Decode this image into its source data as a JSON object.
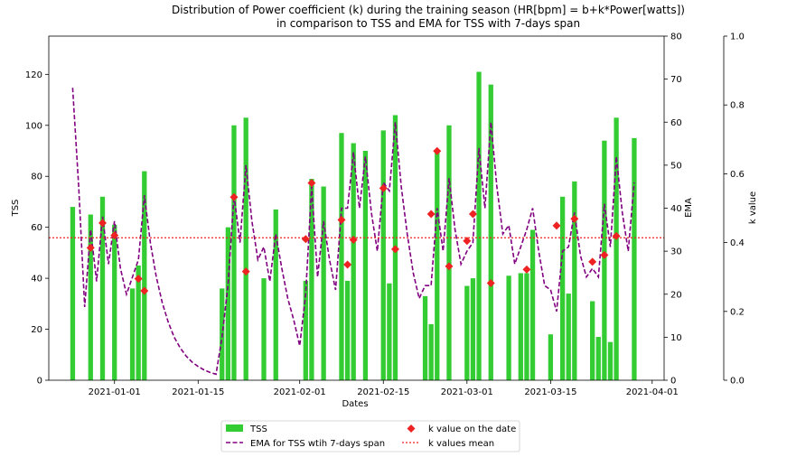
{
  "chart_data": {
    "type": "bar",
    "title": "Distribution of Power coefficient (k) during the training season (HR[bpm] = b+k*Power[watts])",
    "subtitle": "in comparison to TSS and EMA for TSS with 7-days span",
    "xlabel": "Dates",
    "ylabel_left": "TSS",
    "ylabel_ema": "EMA",
    "ylabel_k": "k value",
    "xlim": [
      "2020-12-21",
      "2021-04-03"
    ],
    "ylim_tss": [
      0,
      135
    ],
    "ylim_ema": [
      0,
      80
    ],
    "ylim_k": [
      0,
      1
    ],
    "x_ticks": [
      "2021-01-01",
      "2021-01-15",
      "2021-02-01",
      "2021-02-15",
      "2021-03-01",
      "2021-03-15",
      "2021-04-01"
    ],
    "tss_ticks": [
      0,
      20,
      40,
      60,
      80,
      100,
      120
    ],
    "ema_ticks": [
      0,
      10,
      20,
      30,
      40,
      50,
      60,
      70,
      80
    ],
    "k_ticks": [
      "0.0",
      "0.2",
      "0.4",
      "0.6",
      "0.8",
      "1.0"
    ],
    "grid": false,
    "legend_position": "bottom-center",
    "colors": {
      "tss": "#33cc33",
      "ema": "#800080",
      "k_points": "#ee2222",
      "k_mean": "#ee2222"
    },
    "series": [
      {
        "name": "TSS",
        "kind": "bar",
        "axis": "tss",
        "points": [
          [
            "2020-12-25",
            68
          ],
          [
            "2020-12-28",
            65
          ],
          [
            "2020-12-30",
            72
          ],
          [
            "2021-01-01",
            61
          ],
          [
            "2021-01-04",
            36
          ],
          [
            "2021-01-05",
            45
          ],
          [
            "2021-01-06",
            82
          ],
          [
            "2021-01-19",
            36
          ],
          [
            "2021-01-20",
            60
          ],
          [
            "2021-01-21",
            100
          ],
          [
            "2021-01-23",
            103
          ],
          [
            "2021-01-26",
            40
          ],
          [
            "2021-01-28",
            67
          ],
          [
            "2021-02-02",
            39
          ],
          [
            "2021-02-03",
            79
          ],
          [
            "2021-02-05",
            76
          ],
          [
            "2021-02-08",
            97
          ],
          [
            "2021-02-09",
            39
          ],
          [
            "2021-02-10",
            93
          ],
          [
            "2021-02-12",
            90
          ],
          [
            "2021-02-15",
            98
          ],
          [
            "2021-02-16",
            38
          ],
          [
            "2021-02-17",
            104
          ],
          [
            "2021-02-22",
            33
          ],
          [
            "2021-02-23",
            22
          ],
          [
            "2021-02-24",
            90
          ],
          [
            "2021-02-26",
            100
          ],
          [
            "2021-03-01",
            37
          ],
          [
            "2021-03-02",
            40
          ],
          [
            "2021-03-03",
            121
          ],
          [
            "2021-03-05",
            116
          ],
          [
            "2021-03-08",
            41
          ],
          [
            "2021-03-10",
            42
          ],
          [
            "2021-03-11",
            42
          ],
          [
            "2021-03-12",
            59
          ],
          [
            "2021-03-15",
            18
          ],
          [
            "2021-03-17",
            72
          ],
          [
            "2021-03-18",
            34
          ],
          [
            "2021-03-19",
            78
          ],
          [
            "2021-03-22",
            31
          ],
          [
            "2021-03-23",
            17
          ],
          [
            "2021-03-24",
            94
          ],
          [
            "2021-03-25",
            15
          ],
          [
            "2021-03-26",
            103
          ],
          [
            "2021-03-29",
            95
          ]
        ]
      },
      {
        "name": "EMA for TSS wtih 7-days span",
        "kind": "line",
        "axis": "ema",
        "points": [
          [
            "2020-12-25",
            68
          ],
          [
            "2020-12-26",
            45
          ],
          [
            "2020-12-27",
            17
          ],
          [
            "2020-12-28",
            35
          ],
          [
            "2020-12-29",
            23
          ],
          [
            "2020-12-30",
            38
          ],
          [
            "2020-12-31",
            27
          ],
          [
            "2021-01-01",
            37
          ],
          [
            "2021-01-02",
            26
          ],
          [
            "2021-01-03",
            20
          ],
          [
            "2021-01-04",
            24
          ],
          [
            "2021-01-05",
            28
          ],
          [
            "2021-01-06",
            43
          ],
          [
            "2021-01-07",
            32
          ],
          [
            "2021-01-08",
            24
          ],
          [
            "2021-01-09",
            18
          ],
          [
            "2021-01-10",
            13.5
          ],
          [
            "2021-01-11",
            10
          ],
          [
            "2021-01-12",
            7.5
          ],
          [
            "2021-01-13",
            5.6
          ],
          [
            "2021-01-14",
            4.2
          ],
          [
            "2021-01-15",
            3.2
          ],
          [
            "2021-01-16",
            2.4
          ],
          [
            "2021-01-17",
            1.8
          ],
          [
            "2021-01-18",
            1.4
          ],
          [
            "2021-01-19",
            10
          ],
          [
            "2021-01-20",
            22
          ],
          [
            "2021-01-21",
            43
          ],
          [
            "2021-01-22",
            32
          ],
          [
            "2021-01-23",
            50
          ],
          [
            "2021-01-24",
            37
          ],
          [
            "2021-01-25",
            28
          ],
          [
            "2021-01-26",
            31
          ],
          [
            "2021-01-27",
            23
          ],
          [
            "2021-01-28",
            34
          ],
          [
            "2021-01-29",
            26
          ],
          [
            "2021-01-30",
            19
          ],
          [
            "2021-01-31",
            14
          ],
          [
            "2021-02-01",
            8
          ],
          [
            "2021-02-02",
            20
          ],
          [
            "2021-02-03",
            45
          ],
          [
            "2021-02-04",
            24
          ],
          [
            "2021-02-05",
            37
          ],
          [
            "2021-02-06",
            28
          ],
          [
            "2021-02-07",
            21
          ],
          [
            "2021-02-08",
            40
          ],
          [
            "2021-02-09",
            40
          ],
          [
            "2021-02-10",
            53
          ],
          [
            "2021-02-11",
            40
          ],
          [
            "2021-02-12",
            52
          ],
          [
            "2021-02-13",
            39
          ],
          [
            "2021-02-14",
            30
          ],
          [
            "2021-02-15",
            46
          ],
          [
            "2021-02-16",
            44
          ],
          [
            "2021-02-17",
            60
          ],
          [
            "2021-02-18",
            45
          ],
          [
            "2021-02-19",
            34
          ],
          [
            "2021-02-20",
            25
          ],
          [
            "2021-02-21",
            19
          ],
          [
            "2021-02-22",
            22
          ],
          [
            "2021-02-23",
            22
          ],
          [
            "2021-02-24",
            40
          ],
          [
            "2021-02-25",
            30
          ],
          [
            "2021-02-26",
            47
          ],
          [
            "2021-02-27",
            35
          ],
          [
            "2021-02-28",
            27
          ],
          [
            "2021-03-01",
            30
          ],
          [
            "2021-03-02",
            32
          ],
          [
            "2021-03-03",
            54
          ],
          [
            "2021-03-04",
            40
          ],
          [
            "2021-03-05",
            60
          ],
          [
            "2021-03-06",
            45
          ],
          [
            "2021-03-07",
            34
          ],
          [
            "2021-03-08",
            36
          ],
          [
            "2021-03-09",
            27
          ],
          [
            "2021-03-10",
            31
          ],
          [
            "2021-03-11",
            35
          ],
          [
            "2021-03-12",
            40
          ],
          [
            "2021-03-13",
            30
          ],
          [
            "2021-03-14",
            22
          ],
          [
            "2021-03-15",
            21
          ],
          [
            "2021-03-16",
            16
          ],
          [
            "2021-03-17",
            30
          ],
          [
            "2021-03-18",
            31
          ],
          [
            "2021-03-19",
            39
          ],
          [
            "2021-03-20",
            29
          ],
          [
            "2021-03-21",
            24
          ],
          [
            "2021-03-22",
            26
          ],
          [
            "2021-03-23",
            24
          ],
          [
            "2021-03-24",
            41
          ],
          [
            "2021-03-25",
            31
          ],
          [
            "2021-03-26",
            52
          ],
          [
            "2021-03-27",
            39
          ],
          [
            "2021-03-28",
            30
          ],
          [
            "2021-03-29",
            46
          ]
        ]
      },
      {
        "name": "k value on the date",
        "kind": "scatter",
        "axis": "k",
        "points": [
          [
            "2020-12-28",
            0.385
          ],
          [
            "2020-12-30",
            0.457
          ],
          [
            "2021-01-01",
            0.421
          ],
          [
            "2021-01-05",
            0.295
          ],
          [
            "2021-01-06",
            0.26
          ],
          [
            "2021-01-21",
            0.532
          ],
          [
            "2021-01-23",
            0.316
          ],
          [
            "2021-02-02",
            0.41
          ],
          [
            "2021-02-03",
            0.573
          ],
          [
            "2021-02-08",
            0.466
          ],
          [
            "2021-02-09",
            0.336
          ],
          [
            "2021-02-10",
            0.408
          ],
          [
            "2021-02-15",
            0.558
          ],
          [
            "2021-02-17",
            0.381
          ],
          [
            "2021-02-23",
            0.483
          ],
          [
            "2021-02-24",
            0.666
          ],
          [
            "2021-02-26",
            0.331
          ],
          [
            "2021-03-01",
            0.405
          ],
          [
            "2021-03-02",
            0.483
          ],
          [
            "2021-03-05",
            0.282
          ],
          [
            "2021-03-11",
            0.322
          ],
          [
            "2021-03-16",
            0.449
          ],
          [
            "2021-03-19",
            0.469
          ],
          [
            "2021-03-22",
            0.344
          ],
          [
            "2021-03-24",
            0.364
          ],
          [
            "2021-03-26",
            0.419
          ]
        ]
      },
      {
        "name": "k values mean",
        "kind": "hline",
        "axis": "k",
        "value": 0.414
      }
    ]
  }
}
